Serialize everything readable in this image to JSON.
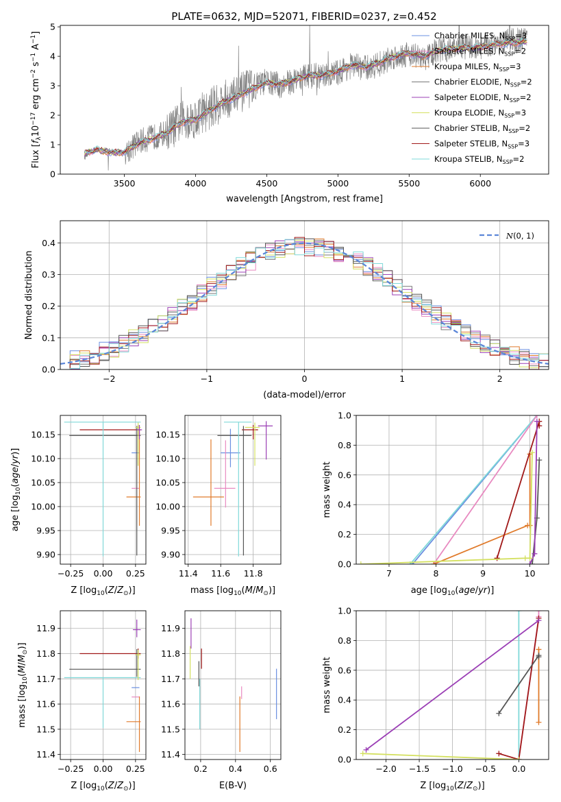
{
  "figure": {
    "title": "PLATE=0632, MJD=52071, FIBERID=0237, z=0.452"
  },
  "chart_data": [
    {
      "id": "spectrum",
      "type": "line",
      "title": "PLATE=0632, MJD=52071, FIBERID=0237, z=0.452",
      "xlabel": "wavelength [Angstrom, rest frame]",
      "ylabel_parts": [
        "Flux [",
        "f",
        "λ",
        "10",
        "−17",
        " erg cm",
        "−2",
        " s",
        "−1",
        " A",
        "−1",
        "]"
      ],
      "xlim": [
        3050,
        6480
      ],
      "ylim": [
        0,
        5.05
      ],
      "xticks": [
        3500,
        4000,
        4500,
        5000,
        5500,
        6000
      ],
      "yticks": [
        0,
        1,
        2,
        3,
        4,
        5
      ],
      "grid": false,
      "legend_position": "upper-right",
      "data_color": "#808080",
      "data_knots": {
        "x": [
          3220,
          3300,
          3420,
          3500,
          3600,
          3700,
          3800,
          3900,
          4000,
          4100,
          4200,
          4300,
          4400,
          4500,
          4600,
          4700,
          4800,
          4900,
          5000,
          5100,
          5200,
          5300,
          5400,
          5500,
          5600,
          5700,
          5800,
          5900,
          6000,
          6100,
          6200,
          6330
        ],
        "y": [
          0.6,
          0.85,
          0.75,
          0.7,
          1.1,
          1.25,
          1.4,
          1.8,
          1.9,
          2.2,
          2.5,
          2.7,
          2.95,
          3.15,
          3.0,
          3.2,
          3.35,
          3.3,
          3.45,
          3.7,
          3.6,
          3.75,
          4.0,
          4.1,
          3.9,
          4.2,
          4.25,
          4.35,
          4.3,
          4.45,
          4.5,
          4.55
        ]
      },
      "model_knots": {
        "x": [
          3220,
          3300,
          3420,
          3500,
          3600,
          3700,
          3800,
          3900,
          4000,
          4100,
          4200,
          4300,
          4400,
          4500,
          4600,
          4700,
          4800,
          4900,
          5000,
          5100,
          5200,
          5300,
          5400,
          5500,
          5600,
          5700,
          5800,
          5900,
          6000,
          6100,
          6200,
          6330
        ],
        "y": [
          0.7,
          0.82,
          0.72,
          0.75,
          1.05,
          1.2,
          1.4,
          1.75,
          1.85,
          2.15,
          2.45,
          2.65,
          2.9,
          3.1,
          3.05,
          3.2,
          3.35,
          3.35,
          3.5,
          3.7,
          3.65,
          3.8,
          4.0,
          4.1,
          4.0,
          4.2,
          4.25,
          4.3,
          4.3,
          4.4,
          4.45,
          4.5
        ]
      },
      "series": [
        {
          "name": "Chabrier MILES",
          "nssp": "3",
          "color": "#6a8fe0"
        },
        {
          "name": "Salpeter MILES",
          "nssp": "2",
          "color": "#e889c0"
        },
        {
          "name": "Kroupa MILES",
          "nssp": "3",
          "color": "#e07a2a"
        },
        {
          "name": "Chabrier ELODIE",
          "nssp": "2",
          "color": "#777777"
        },
        {
          "name": "Salpeter ELODIE",
          "nssp": "2",
          "color": "#9b3fb5"
        },
        {
          "name": "Kroupa ELODIE",
          "nssp": "3",
          "color": "#d4e060"
        },
        {
          "name": "Chabrier STELIB",
          "nssp": "2",
          "color": "#555555"
        },
        {
          "name": "Salpeter STELIB",
          "nssp": "3",
          "color": "#a01818"
        },
        {
          "name": "Kroupa STELIB",
          "nssp": "2",
          "color": "#7fd8d8"
        }
      ]
    },
    {
      "id": "residuals",
      "type": "line",
      "xlabel": "(data-model)/error",
      "ylabel": "Normed distribution",
      "xlim": [
        -2.5,
        2.5
      ],
      "ylim": [
        0,
        0.47
      ],
      "xticks": [
        -2,
        -1,
        0,
        1,
        2
      ],
      "yticks": [
        0.0,
        0.1,
        0.2,
        0.3,
        0.4
      ],
      "grid": true,
      "legend_position": "upper-right",
      "gaussian": {
        "name": "N(0,1)",
        "color": "#5b86d8",
        "mean": 0,
        "sigma": 1
      },
      "bin_width": 0.1,
      "series_colors": [
        "#6a8fe0",
        "#e889c0",
        "#e07a2a",
        "#777777",
        "#9b3fb5",
        "#d4e060",
        "#555555",
        "#a01818",
        "#7fd8d8"
      ]
    },
    {
      "id": "age_vs_Z",
      "type": "scatter",
      "xlabel": "Z [log10(Z/Z⊙)]",
      "ylabel": "age  [log10(age/yr)]",
      "xlim": [
        -0.33,
        0.33
      ],
      "ylim": [
        9.88,
        10.19
      ],
      "xticks": [
        -0.25,
        0.0,
        0.25
      ],
      "yticks": [
        9.9,
        9.95,
        10.0,
        10.05,
        10.1,
        10.15
      ],
      "grid": true,
      "points": [
        {
          "x": 0.27,
          "y": 10.112,
          "xerr_lo": 0.05,
          "xerr_hi": 0.01,
          "yerr_lo": 0.0,
          "yerr_hi": 0.0,
          "color": "#6a8fe0"
        },
        {
          "x": 0.27,
          "y": 10.038,
          "xerr_lo": 0.05,
          "xerr_hi": 0.01,
          "yerr_lo": 0.0,
          "yerr_hi": 0.0,
          "color": "#e889c0"
        },
        {
          "x": 0.28,
          "y": 10.02,
          "xerr_lo": 0.1,
          "xerr_hi": 0.01,
          "yerr_lo": 0.06,
          "yerr_hi": 0.14,
          "color": "#e07a2a"
        },
        {
          "x": 0.27,
          "y": 10.16,
          "xerr_lo": 0.45,
          "xerr_hi": 0.02,
          "yerr_lo": 0.01,
          "yerr_hi": 0.01,
          "color": "#a01818"
        },
        {
          "x": 0.26,
          "y": 10.148,
          "xerr_lo": 0.52,
          "xerr_hi": 0.03,
          "yerr_lo": 0.25,
          "yerr_hi": 0.02,
          "color": "#555555"
        },
        {
          "x": 0.0,
          "y": 10.176,
          "xerr_lo": 0.3,
          "xerr_hi": 0.29,
          "yerr_lo": 0.28,
          "yerr_hi": 0.0,
          "color": "#7fd8d8"
        },
        {
          "x": 0.27,
          "y": 10.165,
          "xerr_lo": 0.02,
          "xerr_hi": 0.02,
          "yerr_lo": 0.08,
          "yerr_hi": 0.01,
          "color": "#d4e060"
        },
        {
          "x": 0.28,
          "y": 10.16,
          "xerr_lo": 0.02,
          "xerr_hi": 0.02,
          "yerr_lo": 0.02,
          "yerr_hi": 0.01,
          "color": "#9b3fb5"
        }
      ]
    },
    {
      "id": "age_vs_mass",
      "type": "scatter",
      "xlabel": "mass [log10(M/M⊙)]",
      "ylabel": "",
      "xlim": [
        11.38,
        11.97
      ],
      "ylim": [
        9.88,
        10.19
      ],
      "xticks": [
        11.4,
        11.6,
        11.8
      ],
      "yticks": [
        9.9,
        9.95,
        10.0,
        10.05,
        10.1,
        10.15
      ],
      "grid": true,
      "points": [
        {
          "x": 11.66,
          "y": 10.112,
          "xerr_lo": 0.06,
          "xerr_hi": 0.06,
          "yerr_lo": 0.03,
          "yerr_hi": 0.05,
          "color": "#6a8fe0"
        },
        {
          "x": 11.63,
          "y": 10.038,
          "xerr_lo": 0.07,
          "xerr_hi": 0.06,
          "yerr_lo": 0.04,
          "yerr_hi": 0.1,
          "color": "#e889c0"
        },
        {
          "x": 11.54,
          "y": 10.02,
          "xerr_lo": 0.11,
          "xerr_hi": 0.08,
          "yerr_lo": 0.06,
          "yerr_hi": 0.12,
          "color": "#e07a2a"
        },
        {
          "x": 11.8,
          "y": 10.16,
          "xerr_lo": 0.07,
          "xerr_hi": 0.03,
          "yerr_lo": 0.02,
          "yerr_hi": 0.01,
          "color": "#a01818"
        },
        {
          "x": 11.74,
          "y": 10.148,
          "xerr_lo": 0.16,
          "xerr_hi": 0.05,
          "yerr_lo": 0.25,
          "yerr_hi": 0.02,
          "color": "#555555"
        },
        {
          "x": 11.71,
          "y": 10.176,
          "xerr_lo": 0.09,
          "xerr_hi": 0.08,
          "yerr_lo": 0.28,
          "yerr_hi": 0.0,
          "color": "#7fd8d8"
        },
        {
          "x": 11.81,
          "y": 10.165,
          "xerr_lo": 0.06,
          "xerr_hi": 0.03,
          "yerr_lo": 0.08,
          "yerr_hi": 0.01,
          "color": "#d4e060"
        },
        {
          "x": 11.88,
          "y": 10.168,
          "xerr_lo": 0.05,
          "xerr_hi": 0.04,
          "yerr_lo": 0.07,
          "yerr_hi": 0.01,
          "color": "#9b3fb5"
        }
      ]
    },
    {
      "id": "massweight_vs_age",
      "type": "line",
      "xlabel": "age  [log10(age/yr)]",
      "ylabel": "mass weight",
      "xlim": [
        6.3,
        10.4
      ],
      "ylim": [
        0,
        1.0
      ],
      "xticks": [
        7,
        8,
        9,
        10
      ],
      "yticks": [
        0.0,
        0.2,
        0.4,
        0.6,
        0.8,
        1.0
      ],
      "grid": true,
      "series": [
        {
          "color": "#6a8fe0",
          "x": [
            7.5,
            10.15
          ],
          "y": [
            0.0,
            1.0
          ]
        },
        {
          "color": "#7fd8d8",
          "x": [
            7.45,
            10.15
          ],
          "y": [
            0.0,
            1.0
          ]
        },
        {
          "color": "#e889c0",
          "x": [
            7.95,
            10.15
          ],
          "y": [
            0.0,
            1.0
          ]
        },
        {
          "color": "#e07a2a",
          "x": [
            7.95,
            9.95,
            10.0,
            10.0
          ],
          "y": [
            0.0,
            0.26,
            0.26,
            0.74
          ]
        },
        {
          "color": "#a01818",
          "x": [
            9.3,
            10.2,
            10.2
          ],
          "y": [
            0.04,
            0.96,
            0.93
          ]
        },
        {
          "color": "#555555",
          "x": [
            10.05,
            10.15,
            10.2
          ],
          "y": [
            0.0,
            0.31,
            0.7
          ]
        },
        {
          "color": "#9b3fb5",
          "x": [
            10.0,
            10.1,
            10.15
          ],
          "y": [
            0.0,
            0.07,
            0.96
          ]
        },
        {
          "color": "#d4e060",
          "x": [
            6.4,
            9.9,
            10.0,
            10.05
          ],
          "y": [
            0.0,
            0.04,
            0.04,
            0.75
          ]
        }
      ]
    },
    {
      "id": "mass_vs_Z",
      "type": "scatter",
      "xlabel": "Z [log10(Z/Z⊙)]",
      "ylabel": "mass [log10(M/M⊙)]",
      "xlim": [
        -0.33,
        0.33
      ],
      "ylim": [
        11.38,
        11.97
      ],
      "xticks": [
        -0.25,
        0.0,
        0.25
      ],
      "yticks": [
        11.4,
        11.5,
        11.6,
        11.7,
        11.8,
        11.9
      ],
      "grid": true,
      "points": [
        {
          "x": 0.27,
          "y": 11.665,
          "xerr_lo": 0.05,
          "xerr_hi": 0.01,
          "yerr_lo": 0.0,
          "yerr_hi": 0.0,
          "color": "#6a8fe0"
        },
        {
          "x": 0.27,
          "y": 11.628,
          "xerr_lo": 0.05,
          "xerr_hi": 0.01,
          "yerr_lo": 0.0,
          "yerr_hi": 0.0,
          "color": "#e889c0"
        },
        {
          "x": 0.28,
          "y": 11.53,
          "xerr_lo": 0.1,
          "xerr_hi": 0.01,
          "yerr_lo": 0.12,
          "yerr_hi": 0.1,
          "color": "#e07a2a"
        },
        {
          "x": 0.27,
          "y": 11.8,
          "xerr_lo": 0.45,
          "xerr_hi": 0.02,
          "yerr_lo": 0.02,
          "yerr_hi": 0.02,
          "color": "#a01818"
        },
        {
          "x": 0.26,
          "y": 11.738,
          "xerr_lo": 0.52,
          "xerr_hi": 0.03,
          "yerr_lo": 0.03,
          "yerr_hi": 0.08,
          "color": "#555555"
        },
        {
          "x": 0.0,
          "y": 11.705,
          "xerr_lo": 0.3,
          "xerr_hi": 0.29,
          "yerr_lo": 0.2,
          "yerr_hi": 0.0,
          "color": "#7fd8d8"
        },
        {
          "x": 0.27,
          "y": 11.795,
          "xerr_lo": 0.02,
          "xerr_hi": 0.02,
          "yerr_lo": 0.1,
          "yerr_hi": 0.02,
          "color": "#d4e060"
        },
        {
          "x": 0.26,
          "y": 11.895,
          "xerr_lo": 0.03,
          "xerr_hi": 0.03,
          "yerr_lo": 0.03,
          "yerr_hi": 0.04,
          "color": "#9b3fb5"
        }
      ]
    },
    {
      "id": "mass_vs_EBV",
      "type": "scatter",
      "xlabel": "E(B-V)",
      "ylabel": "",
      "xlim": [
        0.11,
        0.66
      ],
      "ylim": [
        11.38,
        11.97
      ],
      "xticks": [
        0.2,
        0.4,
        0.6
      ],
      "yticks": [
        11.4,
        11.5,
        11.6,
        11.7,
        11.8,
        11.9
      ],
      "grid": true,
      "points": [
        {
          "x": 0.635,
          "y": 11.64,
          "yerr_lo": 0.1,
          "yerr_hi": 0.1,
          "color": "#6a8fe0"
        },
        {
          "x": 0.435,
          "y": 11.62,
          "yerr_lo": 0.0,
          "yerr_hi": 0.05,
          "color": "#e889c0"
        },
        {
          "x": 0.425,
          "y": 11.53,
          "yerr_lo": 0.12,
          "yerr_hi": 0.1,
          "color": "#e07a2a"
        },
        {
          "x": 0.205,
          "y": 11.78,
          "yerr_lo": 0.04,
          "yerr_hi": 0.04,
          "color": "#a01818"
        },
        {
          "x": 0.19,
          "y": 11.72,
          "yerr_lo": 0.05,
          "yerr_hi": 0.05,
          "color": "#555555"
        },
        {
          "x": 0.195,
          "y": 11.6,
          "yerr_lo": 0.1,
          "yerr_hi": 0.1,
          "color": "#7fd8d8"
        },
        {
          "x": 0.14,
          "y": 11.78,
          "yerr_lo": 0.08,
          "yerr_hi": 0.05,
          "color": "#d4e060"
        },
        {
          "x": 0.145,
          "y": 11.88,
          "yerr_lo": 0.06,
          "yerr_hi": 0.06,
          "color": "#9b3fb5"
        }
      ]
    },
    {
      "id": "massweight_vs_Z",
      "type": "line",
      "xlabel": "Z [log10(Z/Z⊙)]",
      "ylabel": "mass weight",
      "xlim": [
        -2.45,
        0.45
      ],
      "ylim": [
        0,
        1.0
      ],
      "xticks": [
        -2.0,
        -1.5,
        -1.0,
        -0.5,
        0.0
      ],
      "yticks": [
        0.0,
        0.2,
        0.4,
        0.6,
        0.8,
        1.0
      ],
      "grid": true,
      "series": [
        {
          "color": "#7fd8d8",
          "x": [
            0.0,
            0.0
          ],
          "y": [
            0.0,
            1.0
          ]
        },
        {
          "color": "#e889c0",
          "x": [
            0.0,
            0.3,
            0.3
          ],
          "y": [
            0.0,
            0.96,
            1.0
          ]
        },
        {
          "color": "#e07a2a",
          "x": [
            0.3,
            0.3
          ],
          "y": [
            0.25,
            0.74
          ]
        },
        {
          "color": "#a01818",
          "x": [
            -0.3,
            0.0,
            0.3
          ],
          "y": [
            0.04,
            0.0,
            0.95
          ]
        },
        {
          "color": "#555555",
          "x": [
            -0.3,
            0.3,
            0.3
          ],
          "y": [
            0.31,
            0.7,
            0.69
          ]
        },
        {
          "color": "#9b3fb5",
          "x": [
            -2.3,
            0.3
          ],
          "y": [
            0.065,
            0.935
          ]
        },
        {
          "color": "#d4e060",
          "x": [
            -2.35,
            0.0
          ],
          "y": [
            0.04,
            0.0
          ]
        }
      ]
    }
  ]
}
